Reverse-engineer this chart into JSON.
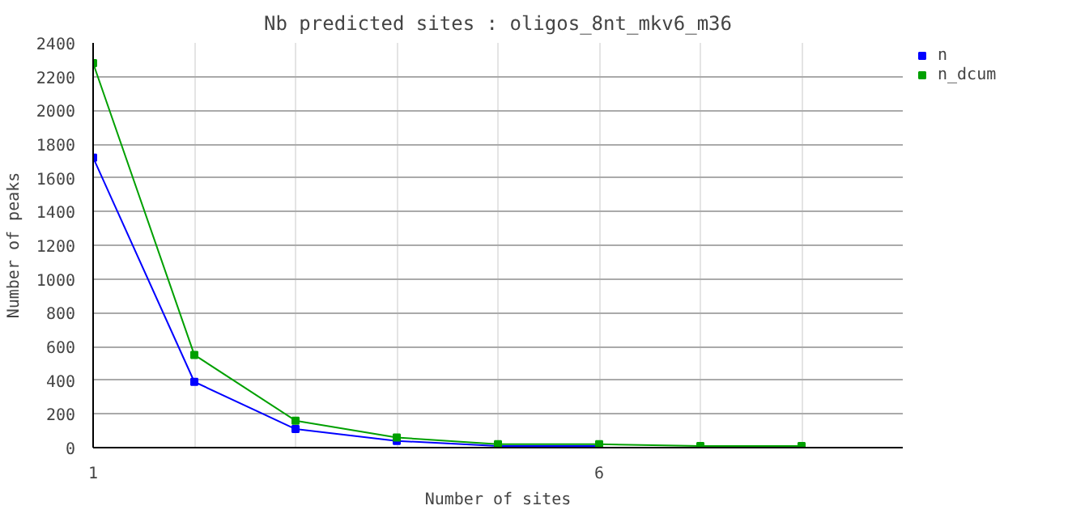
{
  "chart_data": {
    "type": "line",
    "title": "Nb predicted sites : oligos_8nt_mkv6_m36",
    "xlabel": "Number of sites",
    "ylabel": "Number of peaks",
    "xlim": [
      1,
      9
    ],
    "xticks": [
      1,
      {
        "value": 2,
        "label": null
      },
      {
        "value": 3,
        "label": null
      },
      {
        "value": 4,
        "label": null
      },
      {
        "value": 5,
        "label": null
      },
      6,
      {
        "value": 7,
        "label": null
      },
      {
        "value": 8,
        "label": null
      }
    ],
    "ylim": [
      0,
      2400
    ],
    "yticks": [
      0,
      200,
      400,
      600,
      800,
      1000,
      1200,
      1400,
      1600,
      1800,
      2000,
      2200,
      2400
    ],
    "grid": true,
    "legend": "top right",
    "marker": "square",
    "line_style": "solid",
    "series": [
      {
        "name": "n",
        "color": "#0000ff",
        "x": [
          1,
          2,
          3,
          4,
          5,
          6
        ],
        "values": [
          1720,
          390,
          110,
          40,
          10,
          10
        ]
      },
      {
        "name": "n_dcum",
        "color": "#00a000",
        "x": [
          1,
          2,
          3,
          4,
          5,
          6,
          7,
          8
        ],
        "values": [
          2280,
          550,
          160,
          60,
          20,
          20,
          10,
          10
        ]
      }
    ]
  }
}
